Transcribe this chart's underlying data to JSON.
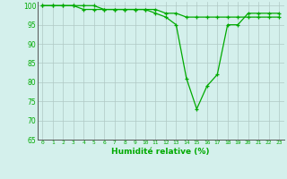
{
  "xlabel": "Humidité relative (%)",
  "x_values": [
    0,
    1,
    2,
    3,
    4,
    5,
    6,
    7,
    8,
    9,
    10,
    11,
    12,
    13,
    14,
    15,
    16,
    17,
    18,
    19,
    20,
    21,
    22,
    23
  ],
  "y_values": [
    100,
    100,
    100,
    100,
    100,
    100,
    99,
    99,
    99,
    99,
    99,
    98,
    97,
    95,
    81,
    73,
    79,
    82,
    95,
    95,
    98,
    98,
    98,
    98
  ],
  "y_values2": [
    100,
    100,
    100,
    100,
    99,
    99,
    99,
    99,
    99,
    99,
    99,
    99,
    98,
    98,
    97,
    97,
    97,
    97,
    97,
    97,
    97,
    97,
    97,
    97
  ],
  "ylim": [
    65,
    101
  ],
  "yticks": [
    65,
    70,
    75,
    80,
    85,
    90,
    95,
    100
  ],
  "line_color": "#00aa00",
  "bg_color": "#d4f0ec",
  "grid_color": "#b0c8c4",
  "axis_color": "#555555"
}
